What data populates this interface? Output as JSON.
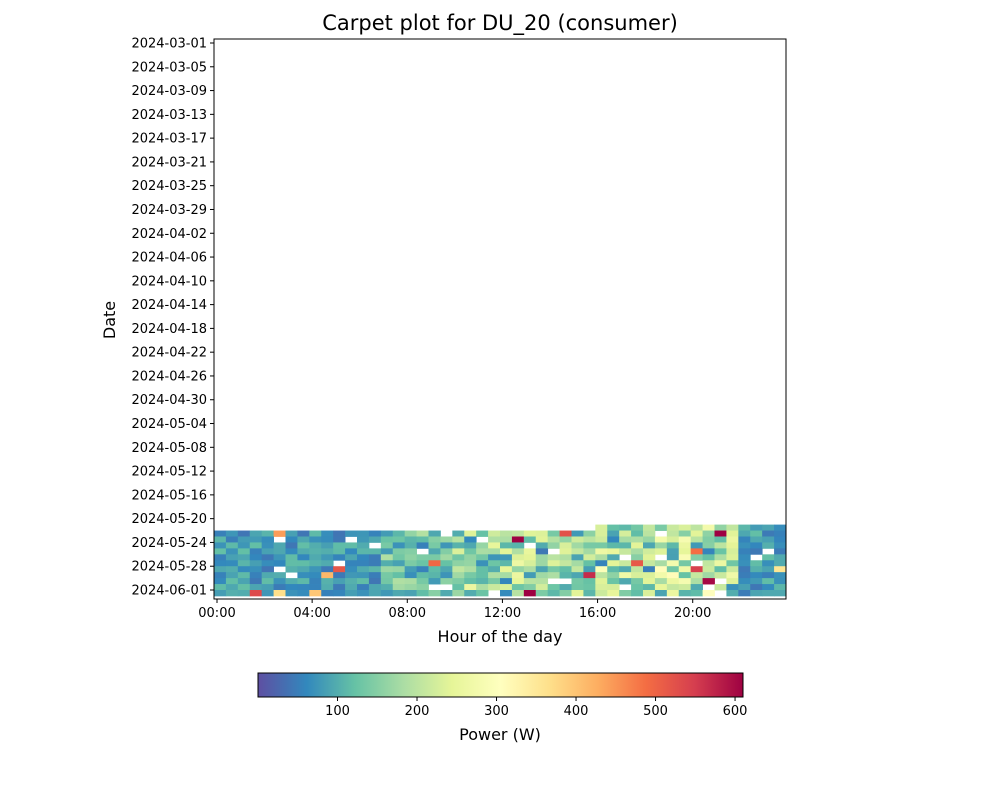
{
  "chart_data": {
    "type": "heatmap",
    "title": "Carpet plot for DU_20 (consumer)",
    "xlabel": "Hour of the day",
    "ylabel": "Date",
    "x_tick_labels": [
      "00:00",
      "04:00",
      "08:00",
      "12:00",
      "16:00",
      "20:00"
    ],
    "x_tick_hours": [
      0,
      4,
      8,
      12,
      16,
      20
    ],
    "xlim_hours": [
      0,
      24
    ],
    "y_tick_labels": [
      "2024-03-01",
      "2024-03-05",
      "2024-03-09",
      "2024-03-13",
      "2024-03-17",
      "2024-03-21",
      "2024-03-25",
      "2024-03-29",
      "2024-04-02",
      "2024-04-06",
      "2024-04-10",
      "2024-04-14",
      "2024-04-18",
      "2024-04-22",
      "2024-04-26",
      "2024-04-30",
      "2024-05-04",
      "2024-05-08",
      "2024-05-12",
      "2024-05-16",
      "2024-05-20",
      "2024-05-24",
      "2024-05-28",
      "2024-06-01"
    ],
    "date_range": [
      "2024-03-01",
      "2024-06-01"
    ],
    "data_start": "2024-05-21T16:00",
    "data_end": "2024-06-01",
    "colorbar": {
      "label": "Power (W)",
      "ticks": [
        100,
        200,
        300,
        400,
        500,
        600
      ],
      "range": [
        0,
        610
      ],
      "colormap": "Spectral_r",
      "stops": [
        "#5e4fa2",
        "#3288bd",
        "#66c2a5",
        "#abdda4",
        "#e6f598",
        "#ffffbf",
        "#fee08b",
        "#fdae61",
        "#f46d43",
        "#d53e4f",
        "#9e0142"
      ]
    }
  }
}
